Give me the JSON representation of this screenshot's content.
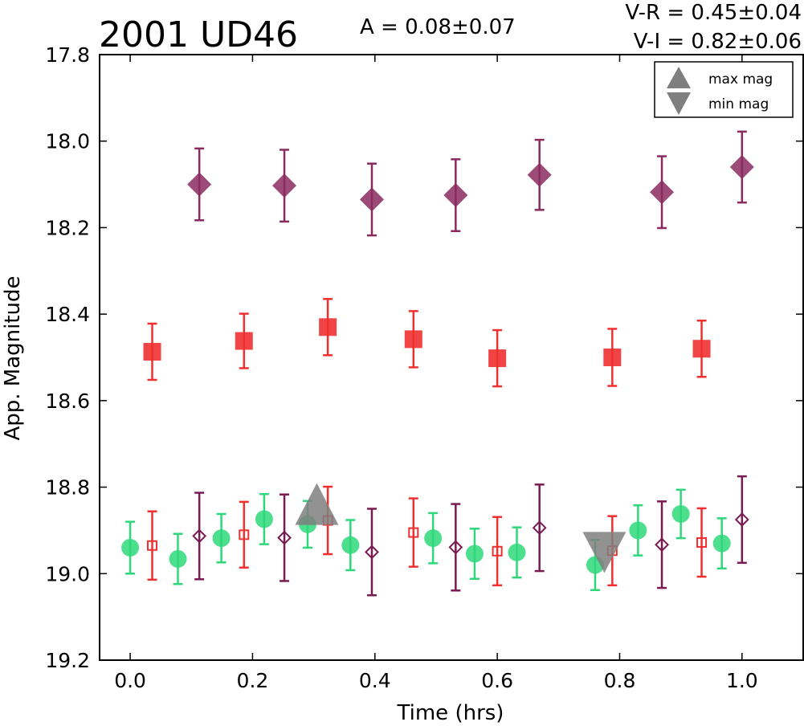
{
  "chart_data": {
    "type": "scatter",
    "title": "2001 UD46",
    "amplitude_text": "A  = 0.08±0.07",
    "color_indices": [
      "V-R = 0.45±0.04",
      "V-I  = 0.82±0.06"
    ],
    "xlabel": "Time (hrs)",
    "ylabel": "App. Magnitude",
    "xlim": [
      -0.05,
      1.1
    ],
    "ylim": [
      19.2,
      17.8
    ],
    "y_inverted": true,
    "grid": false,
    "legend_position": "top-right",
    "x_ticks": [
      "0.0",
      "0.2",
      "0.4",
      "0.6",
      "0.8",
      "1.0"
    ],
    "y_ticks": [
      "17.8",
      "18.0",
      "18.2",
      "18.4",
      "18.6",
      "18.8",
      "19.0",
      "19.2"
    ],
    "legend": [
      {
        "label": "max mag",
        "marker": "triangle-up"
      },
      {
        "label": "min mag",
        "marker": "triangle-down"
      }
    ],
    "colors": {
      "filled_diamond": "#8b2a5f",
      "filled_square": "#f03030",
      "green_circle": "#2ed87a",
      "open_square": "#f03030",
      "open_diamond": "#7a1a52",
      "extrema_marker": "#7f7f7f"
    },
    "series": [
      {
        "marker": "diamond-filled",
        "x": [
          0.113,
          0.252,
          0.395,
          0.532,
          0.669,
          0.869,
          1.0
        ],
        "y": [
          18.1,
          18.103,
          18.135,
          18.125,
          18.078,
          18.118,
          18.06
        ],
        "err": [
          0.083,
          0.083,
          0.083,
          0.083,
          0.081,
          0.083,
          0.082
        ]
      },
      {
        "marker": "square-filled",
        "x": [
          0.036,
          0.186,
          0.323,
          0.463,
          0.6,
          0.788,
          0.934
        ],
        "y": [
          18.487,
          18.462,
          18.43,
          18.458,
          18.502,
          18.5,
          18.48
        ],
        "err": [
          0.065,
          0.063,
          0.065,
          0.065,
          0.065,
          0.066,
          0.065
        ]
      },
      {
        "marker": "circle-filled",
        "x": [
          0.0,
          0.078,
          0.149,
          0.219,
          0.29,
          0.36,
          0.495,
          0.563,
          0.632,
          0.76,
          0.83,
          0.9,
          0.967
        ],
        "y": [
          18.94,
          18.966,
          18.918,
          18.874,
          18.886,
          18.934,
          18.918,
          18.954,
          18.951,
          18.98,
          18.9,
          18.862,
          18.93
        ],
        "err": [
          0.06,
          0.058,
          0.056,
          0.058,
          0.054,
          0.058,
          0.058,
          0.058,
          0.058,
          0.058,
          0.058,
          0.056,
          0.058
        ]
      },
      {
        "marker": "square-open",
        "x": [
          0.036,
          0.186,
          0.323,
          0.463,
          0.6,
          0.788,
          0.934
        ],
        "y": [
          18.935,
          18.91,
          18.877,
          18.905,
          18.948,
          18.947,
          18.928
        ],
        "err": [
          0.079,
          0.076,
          0.078,
          0.079,
          0.079,
          0.08,
          0.079
        ]
      },
      {
        "marker": "diamond-open",
        "x": [
          0.113,
          0.252,
          0.395,
          0.532,
          0.669,
          0.869,
          1.0
        ],
        "y": [
          18.913,
          18.917,
          18.95,
          18.939,
          18.894,
          18.933,
          18.875
        ],
        "err": [
          0.1,
          0.1,
          0.1,
          0.1,
          0.1,
          0.1,
          0.1
        ]
      }
    ],
    "extrema": [
      {
        "type": "max",
        "marker": "triangle-up",
        "x": 0.305,
        "y": 18.88
      },
      {
        "type": "min",
        "marker": "triangle-down",
        "x": 0.775,
        "y": 18.95
      }
    ]
  }
}
